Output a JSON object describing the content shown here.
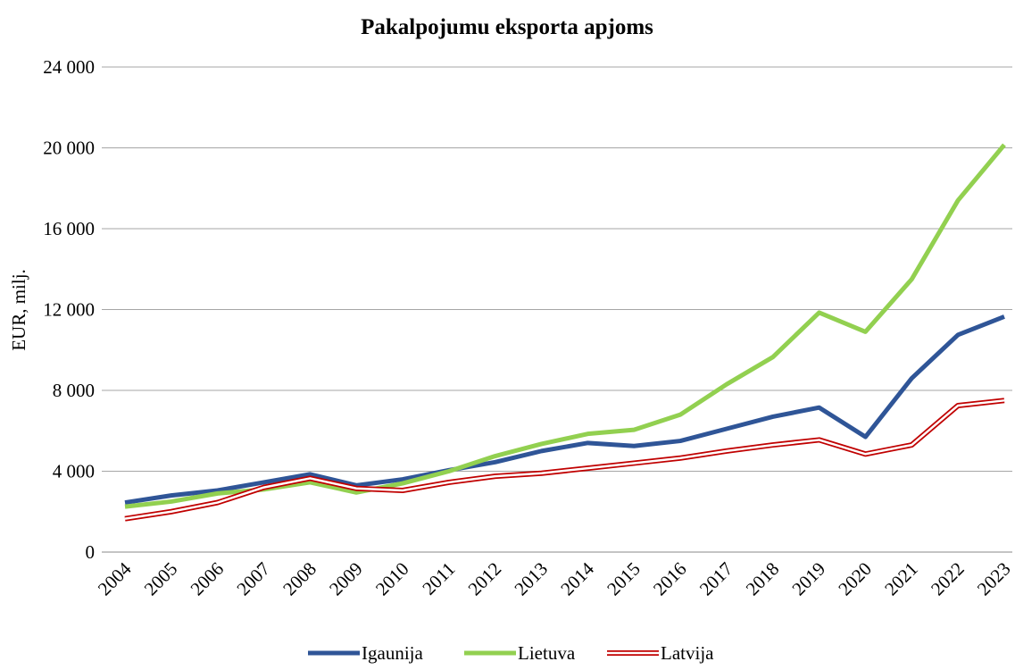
{
  "chart_data": {
    "type": "line",
    "title": "Pakalpojumu eksporta apjoms",
    "y_label": "EUR, milj.",
    "categories": [
      "2004",
      "2005",
      "2006",
      "2007",
      "2008",
      "2009",
      "2010",
      "2011",
      "2012",
      "2013",
      "2014",
      "2015",
      "2016",
      "2017",
      "2018",
      "2019",
      "2020",
      "2021",
      "2022",
      "2023"
    ],
    "series": [
      {
        "name": "Igaunija",
        "color": "#2f5597",
        "values": [
          2450,
          2800,
          3050,
          3450,
          3850,
          3300,
          3600,
          4050,
          4450,
          5000,
          5400,
          5250,
          5500,
          6100,
          6700,
          7150,
          5700,
          8600,
          10750,
          11650
        ]
      },
      {
        "name": "Lietuva",
        "color": "#92d050",
        "values": [
          2250,
          2500,
          2900,
          3100,
          3450,
          2950,
          3400,
          4000,
          4750,
          5350,
          5850,
          6050,
          6800,
          8300,
          9650,
          11850,
          10900,
          13500,
          17400,
          20150
        ]
      },
      {
        "name": "Latvija",
        "color": "#c00000",
        "values": [
          1650,
          2000,
          2450,
          3200,
          3650,
          3150,
          3050,
          3450,
          3750,
          3900,
          4150,
          4400,
          4650,
          5000,
          5300,
          5550,
          4850,
          5300,
          7250,
          7500
        ]
      }
    ],
    "ylim": [
      0,
      24000
    ],
    "yticks": [
      0,
      {
        "value": 4000,
        "label": "4 000"
      },
      {
        "value": 8000,
        "label": "8 000"
      },
      {
        "value": 12000,
        "label": "12 000"
      },
      {
        "value": 16000,
        "label": "16 000"
      },
      {
        "value": 20000,
        "label": "20 000"
      },
      {
        "value": 24000,
        "label": "24 000"
      }
    ],
    "grid": true,
    "legend": "bottom"
  }
}
